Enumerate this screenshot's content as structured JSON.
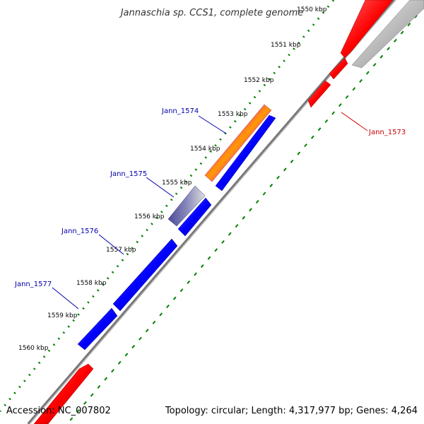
{
  "title": "Jannaschia sp. CCS1, complete genome",
  "footer": {
    "accession": "Accession: NC_007802",
    "topology": "Topology: circular; Length: 4,317,977 bp; Genes: 4,264"
  },
  "colors": {
    "forward_gene": "#0000ff",
    "reverse_gene": "#ff0000",
    "backbone": "#888888",
    "tick": "#008000",
    "forward_label": "#0000aa",
    "reverse_label": "#cc0000",
    "cds_highlight": "#ff3399",
    "cds_stripe": "#ff9900",
    "cds_faded": "#6666aa",
    "reverse_faded": "#bbbbbb"
  },
  "ticks": [
    {
      "label": "1550 kbp"
    },
    {
      "label": "1551 kbp"
    },
    {
      "label": "1552 kbp"
    },
    {
      "label": "1553 kbp"
    },
    {
      "label": "1554 kbp"
    },
    {
      "label": "1555 kbp"
    },
    {
      "label": "1556 kbp"
    },
    {
      "label": "1557 kbp"
    },
    {
      "label": "1558 kbp"
    },
    {
      "label": "1559 kbp"
    },
    {
      "label": "1560 kbp"
    }
  ],
  "gene_labels": [
    {
      "name": "Jann_1573",
      "strand": "reverse"
    },
    {
      "name": "Jann_1574",
      "strand": "forward"
    },
    {
      "name": "Jann_1575",
      "strand": "forward"
    },
    {
      "name": "Jann_1576",
      "strand": "forward"
    },
    {
      "name": "Jann_1577",
      "strand": "forward"
    }
  ]
}
